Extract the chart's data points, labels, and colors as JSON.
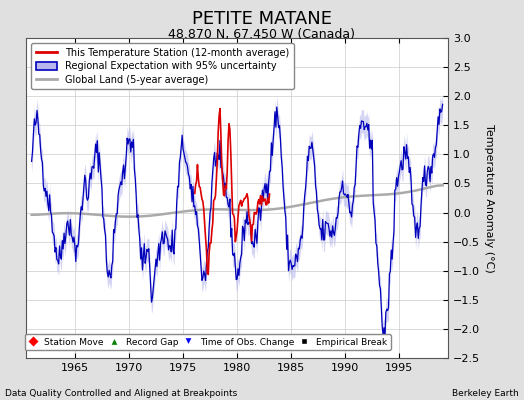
{
  "title": "PETITE MATANE",
  "subtitle": "48.870 N, 67.450 W (Canada)",
  "ylabel": "Temperature Anomaly (°C)",
  "xlabel_note": "Data Quality Controlled and Aligned at Breakpoints",
  "credit": "Berkeley Earth",
  "ylim": [
    -2.5,
    3.0
  ],
  "xlim": [
    1960.5,
    1999.5
  ],
  "yticks": [
    -2.5,
    -2,
    -1.5,
    -1,
    -0.5,
    0,
    0.5,
    1,
    1.5,
    2,
    2.5,
    3
  ],
  "xticks": [
    1965,
    1970,
    1975,
    1980,
    1985,
    1990,
    1995
  ],
  "title_fontsize": 13,
  "subtitle_fontsize": 9,
  "axis_label_fontsize": 8,
  "tick_fontsize": 8,
  "bg_color": "#e0e0e0",
  "plot_bg_color": "#ffffff",
  "red_line_color": "#dd0000",
  "blue_line_color": "#0000bb",
  "blue_fill_color": "#b8b8ee",
  "gray_line_color": "#aaaaaa",
  "legend_box_color": "#ffffff",
  "seed": 42
}
